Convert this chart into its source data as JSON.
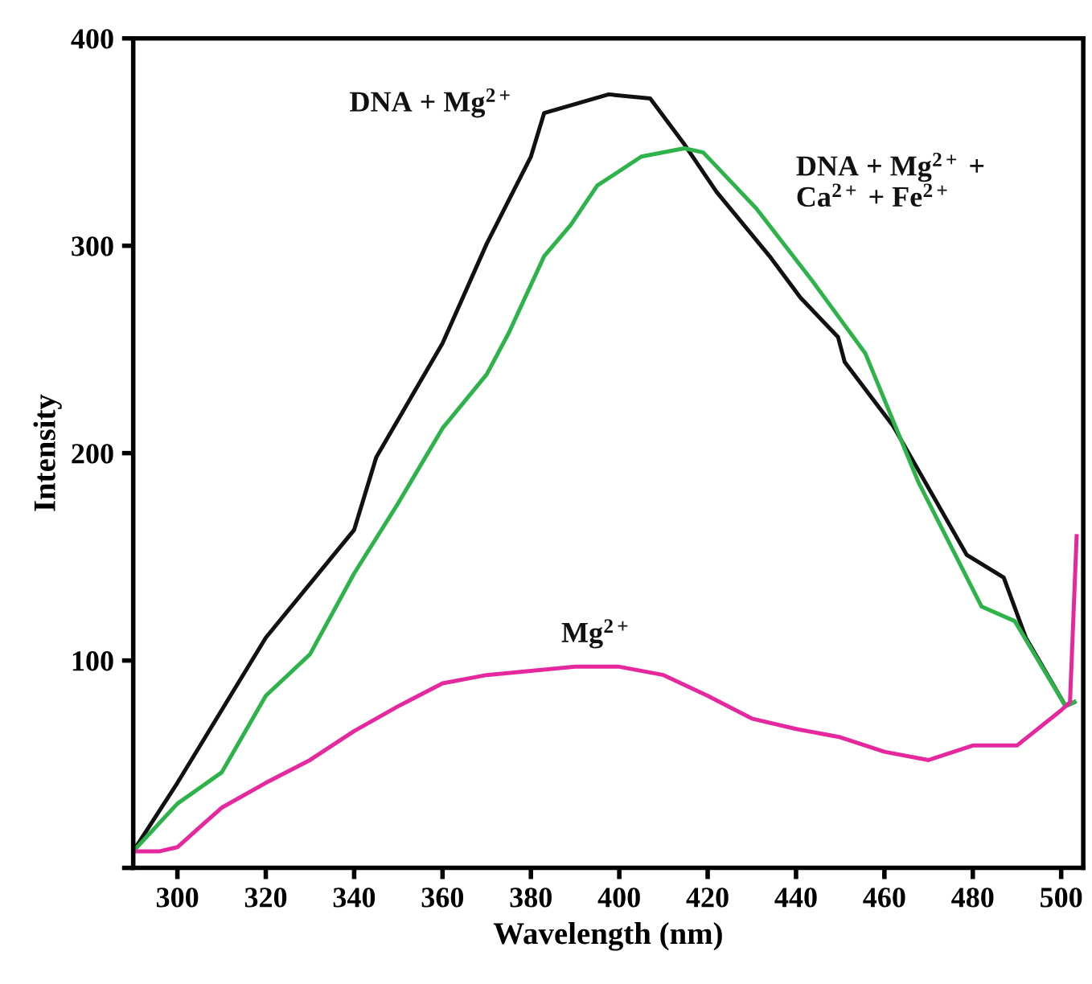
{
  "chart_data": {
    "type": "line",
    "xlabel": "Wavelength (nm)",
    "ylabel": "Intensity",
    "xlim": [
      290,
      505
    ],
    "ylim": [
      0,
      400
    ],
    "xticks": [
      300,
      320,
      340,
      360,
      380,
      400,
      420,
      440,
      460,
      480,
      500
    ],
    "yticks": [
      {
        "value": 0,
        "label": null
      },
      100,
      200,
      300,
      400
    ],
    "grid": false,
    "legend": false,
    "marker": "none",
    "line_style": "solid",
    "series": [
      {
        "name": "DNA + Mg$^{2+}$",
        "color": "#111111",
        "x": [
          290,
          300,
          320,
          340,
          345,
          360,
          370,
          380,
          383,
          397.6,
          407,
          414.7,
          422,
          434,
          441,
          449.5,
          451,
          462,
          478.6,
          487,
          492,
          501,
          503
        ],
        "values": [
          8,
          41,
          111,
          163,
          198,
          253,
          301,
          343,
          364,
          373,
          371,
          349,
          326,
          295,
          275,
          256,
          244,
          213,
          151,
          140,
          111,
          78,
          80
        ]
      },
      {
        "name": "DNA + Mg$^{2+}$ +\nCa$^{2+}$ + Fe$^{2+}$",
        "color": "#2db34a",
        "x": [
          290,
          300,
          310,
          320,
          330,
          340,
          350,
          355,
          360,
          370,
          375,
          383,
          389,
          395,
          405,
          414.7,
          419,
          431,
          443.7,
          455.7,
          467.7,
          482,
          489.5,
          501,
          503
        ],
        "values": [
          8,
          31,
          46,
          83,
          103,
          142,
          176,
          194,
          212,
          238,
          258,
          295,
          310,
          329,
          343,
          347,
          345,
          318,
          283,
          248,
          186,
          126,
          119,
          78,
          80
        ]
      },
      {
        "name": "Mg$^{2+}$",
        "color": "#e6289e",
        "x": [
          290,
          296,
          300,
          310,
          320,
          330,
          340,
          350,
          360,
          370,
          380,
          390,
          400,
          410,
          420,
          430,
          440,
          450,
          460,
          470,
          480,
          490,
          500,
          502,
          503.5
        ],
        "values": [
          8,
          8,
          10,
          29,
          41,
          52,
          66,
          78,
          89,
          93,
          95,
          97,
          97,
          93,
          83,
          72,
          67,
          63,
          56,
          52,
          59,
          59,
          76,
          80,
          160
        ]
      }
    ]
  }
}
